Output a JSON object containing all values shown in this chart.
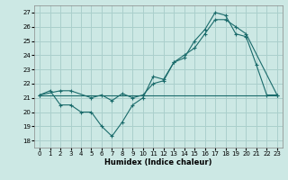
{
  "xlabel": "Humidex (Indice chaleur)",
  "xlim": [
    -0.5,
    23.5
  ],
  "ylim": [
    17.5,
    27.5
  ],
  "xticks": [
    0,
    1,
    2,
    3,
    4,
    5,
    6,
    7,
    8,
    9,
    10,
    11,
    12,
    13,
    14,
    15,
    16,
    17,
    18,
    19,
    20,
    21,
    22,
    23
  ],
  "yticks": [
    18,
    19,
    20,
    21,
    22,
    23,
    24,
    25,
    26,
    27
  ],
  "bg_color": "#cce8e4",
  "grid_color": "#aacfcc",
  "line_color": "#1a6b6b",
  "line1_x": [
    0,
    1,
    2,
    3,
    4,
    5,
    6,
    7,
    8,
    9,
    10,
    11,
    12,
    13,
    14,
    15,
    16,
    17,
    18,
    19,
    20,
    21,
    22,
    23
  ],
  "line1_y": [
    21.2,
    21.5,
    20.5,
    20.5,
    20.0,
    20.0,
    19.0,
    18.3,
    19.3,
    20.5,
    21.0,
    22.5,
    22.3,
    23.5,
    23.8,
    25.0,
    25.8,
    27.0,
    26.8,
    25.5,
    25.3,
    23.3,
    21.2,
    21.2
  ],
  "line2_x": [
    0,
    2,
    3,
    5,
    6,
    7,
    8,
    9,
    10,
    11,
    12,
    13,
    14,
    15,
    16,
    17,
    18,
    19,
    20,
    23
  ],
  "line2_y": [
    21.2,
    21.5,
    21.5,
    21.0,
    21.2,
    20.8,
    21.3,
    21.0,
    21.2,
    22.0,
    22.2,
    23.5,
    24.0,
    24.5,
    25.5,
    26.5,
    26.5,
    26.0,
    25.5,
    21.2
  ],
  "line3_x": [
    0,
    23
  ],
  "line3_y": [
    21.2,
    21.2
  ]
}
